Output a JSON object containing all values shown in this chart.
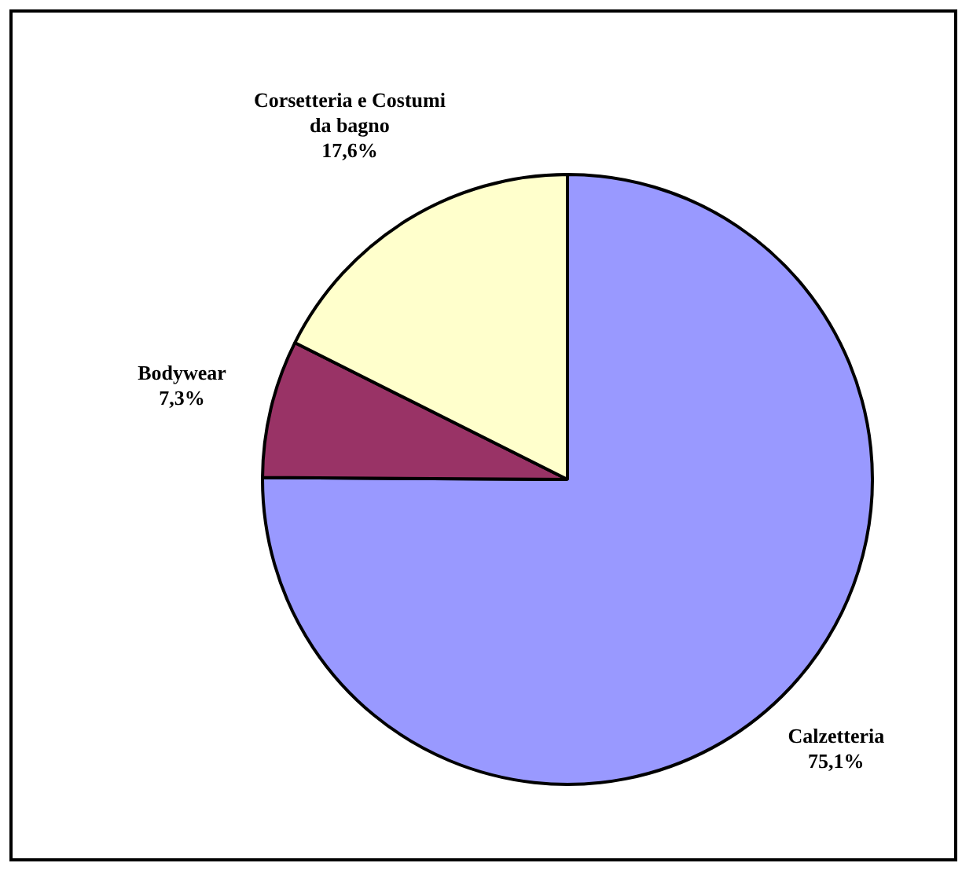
{
  "chart_data": {
    "type": "pie",
    "categories": [
      "Calzetteria",
      "Bodywear",
      "Corsetteria e Costumi da bagno"
    ],
    "values": [
      75.1,
      7.3,
      17.6
    ],
    "colors": [
      "#9999ff",
      "#993366",
      "#ffffcc"
    ],
    "value_labels": [
      "75,1%",
      "7,3%",
      "17,6%"
    ],
    "legend": false
  }
}
